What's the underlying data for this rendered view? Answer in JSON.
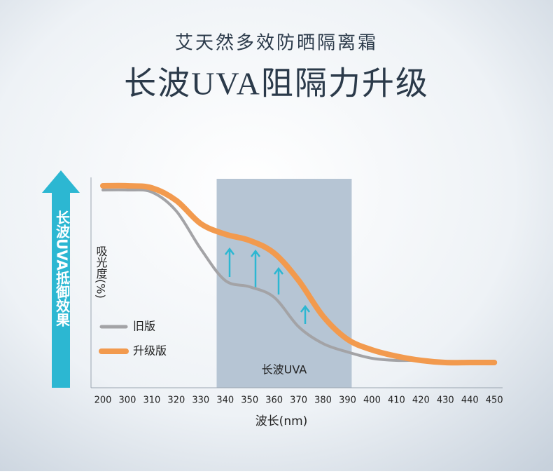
{
  "chart_data": {
    "type": "line",
    "title": "艾天然多效防晒隔离霜",
    "subtitle": "长波UVA阻隔力升级",
    "arrow_label": "长波UVA抵御效果",
    "y_label": "吸光度(%)",
    "x_label": "波长(nm)",
    "categories": [
      "200",
      "300",
      "310",
      "320",
      "330",
      "340",
      "350",
      "360",
      "370",
      "380",
      "390",
      "400",
      "410",
      "420",
      "430",
      "440",
      "450"
    ],
    "series": [
      {
        "name": "旧版",
        "color": "#a3a3a6",
        "values": [
          94,
          94,
          93,
          84,
          66,
          51,
          48,
          43,
          29,
          21,
          17,
          14,
          13,
          13,
          12,
          12,
          12
        ]
      },
      {
        "name": "升级版",
        "color": "#f29a4e",
        "values": [
          96,
          96,
          95,
          89,
          78,
          73,
          70,
          64,
          51,
          34,
          23,
          18,
          15,
          13,
          12,
          12,
          12
        ]
      }
    ],
    "ylim": [
      0,
      100
    ],
    "band": {
      "label": "长波UVA",
      "from": "340",
      "to": "390",
      "color": "#b6c5d4"
    }
  }
}
